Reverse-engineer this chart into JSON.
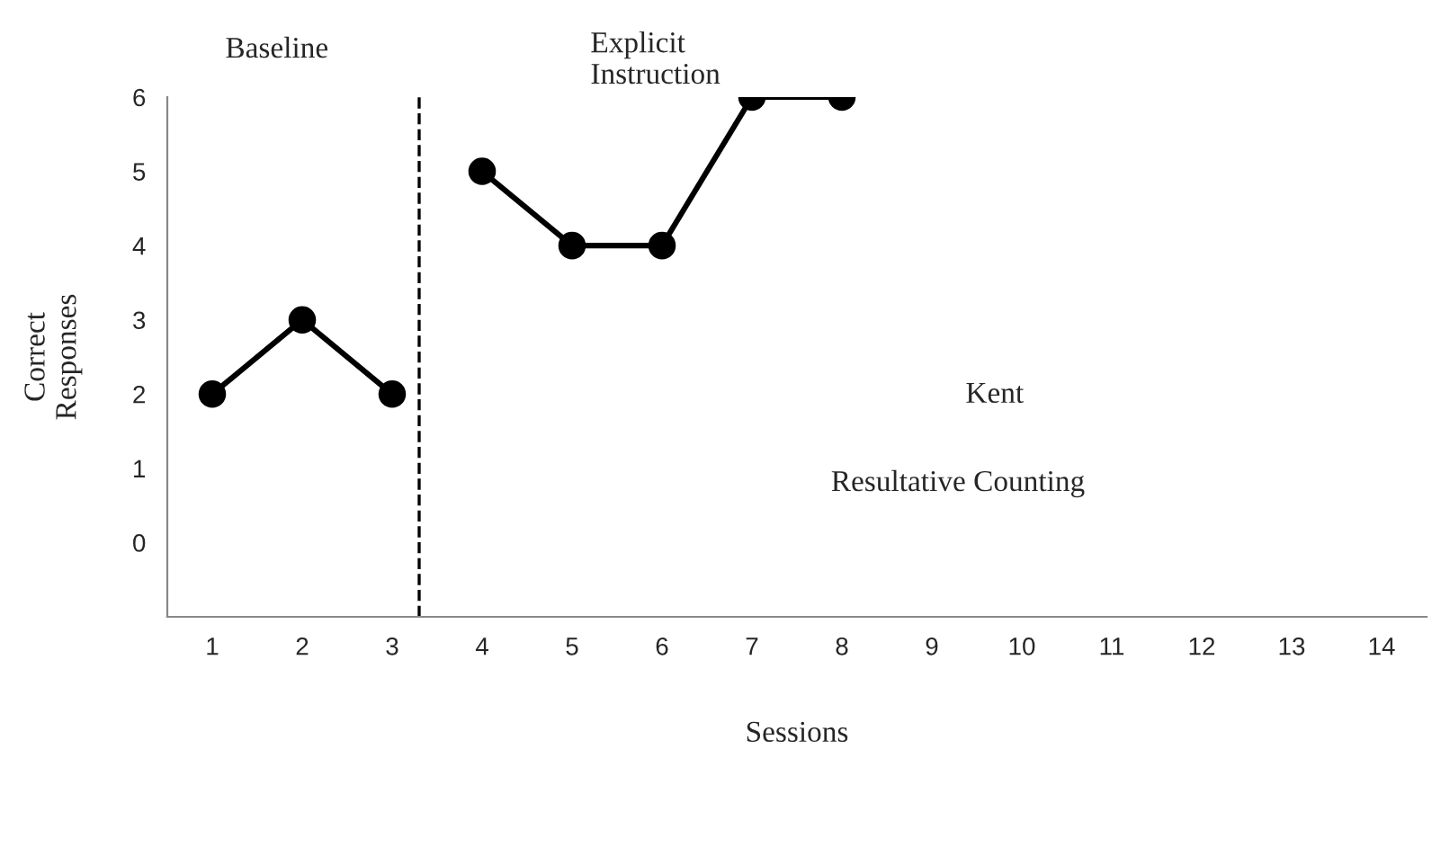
{
  "chart_data": {
    "type": "line",
    "xlabel": "Sessions",
    "ylabel": "Correct\nResponses",
    "xlim": [
      0.5,
      14.5
    ],
    "xticks": [
      1,
      2,
      3,
      4,
      5,
      6,
      7,
      8,
      9,
      10,
      11,
      12,
      13,
      14
    ],
    "ylim": [
      -1,
      6
    ],
    "yticks": [
      0,
      1,
      2,
      3,
      4,
      5,
      6
    ],
    "series": [
      {
        "color": "#000000",
        "x": [
          1,
          2,
          3
        ],
        "values": [
          2,
          3,
          2
        ]
      },
      {
        "color": "#000000",
        "x": [
          4,
          5,
          6,
          7,
          8
        ],
        "values": [
          5,
          4,
          4,
          6,
          6
        ]
      }
    ],
    "marker": "circle",
    "line_style": "solid",
    "grid": false,
    "legend": false,
    "ref_lines": [
      {
        "axis": "x",
        "value": 3.3,
        "line_style": "dashed",
        "color": "#000000"
      }
    ],
    "annotations": [
      "Baseline",
      "Explicit\nInstruction",
      "Kent",
      "Resultative Counting"
    ]
  }
}
